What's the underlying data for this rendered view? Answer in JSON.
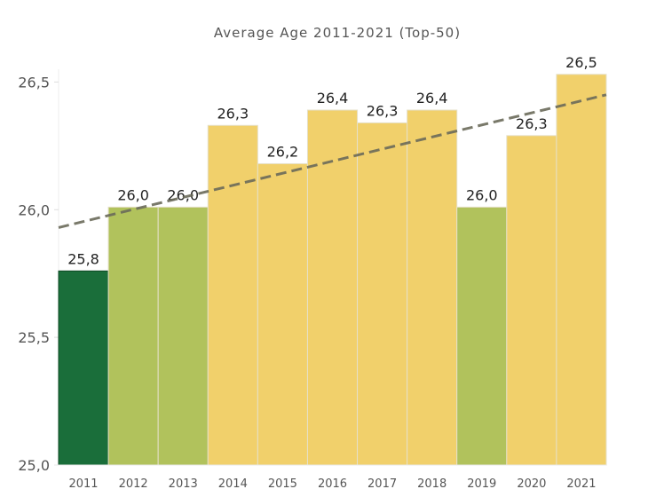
{
  "chart_data": {
    "type": "bar",
    "title": "Average Age 2011-2021 (Top-50)",
    "xlabel": "",
    "ylabel": "",
    "categories": [
      "2011",
      "2012",
      "2013",
      "2014",
      "2015",
      "2016",
      "2017",
      "2018",
      "2019",
      "2020",
      "2021"
    ],
    "values": [
      25.76,
      26.01,
      26.01,
      26.33,
      26.18,
      26.39,
      26.34,
      26.39,
      26.01,
      26.29,
      26.53
    ],
    "value_labels": [
      "25,8",
      "26,0",
      "26,0",
      "26,3",
      "26,2",
      "26,4",
      "26,3",
      "26,4",
      "26,0",
      "26,3",
      "26,5"
    ],
    "bar_colors": [
      "#1a6e3a",
      "#b1c25c",
      "#b1c25c",
      "#f1d06b",
      "#f1d06b",
      "#f1d06b",
      "#f1d06b",
      "#f1d06b",
      "#b1c25c",
      "#f1d06b",
      "#f1d06b"
    ],
    "ylim": [
      25.0,
      26.55
    ],
    "yticks": [
      25.0,
      25.5,
      26.0,
      26.5
    ],
    "ytick_labels": [
      "25,0",
      "25,5",
      "26,0",
      "26,5"
    ],
    "grid": false,
    "legend": "none",
    "trendline": {
      "style": "dashed",
      "color": "#6b6b5a",
      "start_value": 25.93,
      "end_value": 26.45
    }
  }
}
